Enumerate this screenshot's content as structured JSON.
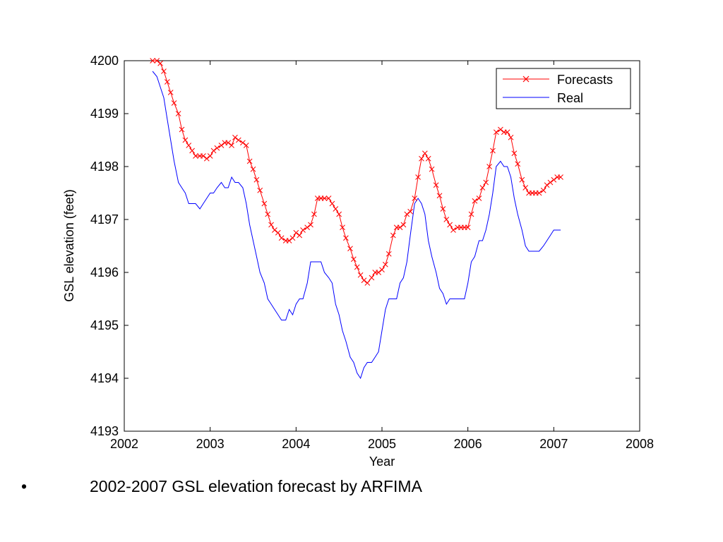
{
  "chart_data": {
    "type": "line",
    "xlabel": "Year",
    "ylabel": "GSL elevation (feet)",
    "xlim": [
      2002,
      2008
    ],
    "ylim": [
      4193,
      4200
    ],
    "xticks": [
      "2002",
      "2003",
      "2004",
      "2005",
      "2006",
      "2007",
      "2008"
    ],
    "yticks": [
      "4193",
      "4194",
      "4195",
      "4196",
      "4197",
      "4198",
      "4199",
      "4200"
    ],
    "grid": false,
    "legend_position": "top-right",
    "series": [
      {
        "name": "Forecasts",
        "color": "#ff0000",
        "marker": "x",
        "x": [
          2002.33,
          2002.38,
          2002.42,
          2002.46,
          2002.5,
          2002.54,
          2002.58,
          2002.63,
          2002.67,
          2002.71,
          2002.75,
          2002.79,
          2002.83,
          2002.88,
          2002.92,
          2002.96,
          2003.0,
          2003.04,
          2003.08,
          2003.13,
          2003.17,
          2003.21,
          2003.25,
          2003.29,
          2003.33,
          2003.38,
          2003.42,
          2003.46,
          2003.5,
          2003.54,
          2003.58,
          2003.63,
          2003.67,
          2003.71,
          2003.75,
          2003.79,
          2003.83,
          2003.88,
          2003.92,
          2003.96,
          2004.0,
          2004.04,
          2004.08,
          2004.13,
          2004.17,
          2004.21,
          2004.25,
          2004.29,
          2004.33,
          2004.38,
          2004.42,
          2004.46,
          2004.5,
          2004.54,
          2004.58,
          2004.63,
          2004.67,
          2004.71,
          2004.75,
          2004.79,
          2004.83,
          2004.88,
          2004.92,
          2004.96,
          2005.0,
          2005.04,
          2005.08,
          2005.13,
          2005.17,
          2005.21,
          2005.25,
          2005.29,
          2005.33,
          2005.38,
          2005.42,
          2005.46,
          2005.5,
          2005.54,
          2005.58,
          2005.63,
          2005.67,
          2005.71,
          2005.75,
          2005.79,
          2005.83,
          2005.88,
          2005.92,
          2005.96,
          2006.0,
          2006.04,
          2006.08,
          2006.13,
          2006.17,
          2006.21,
          2006.25,
          2006.29,
          2006.33,
          2006.38,
          2006.42,
          2006.46,
          2006.5,
          2006.54,
          2006.58,
          2006.63,
          2006.67,
          2006.71,
          2006.75,
          2006.79,
          2006.83,
          2006.88,
          2006.92,
          2006.96,
          2007.0,
          2007.04,
          2007.08
        ],
        "y": [
          4200.0,
          4200.0,
          4199.95,
          4199.8,
          4199.6,
          4199.4,
          4199.2,
          4199.0,
          4198.7,
          4198.5,
          4198.4,
          4198.3,
          4198.2,
          4198.2,
          4198.2,
          4198.15,
          4198.2,
          4198.3,
          4198.35,
          4198.4,
          4198.45,
          4198.45,
          4198.4,
          4198.55,
          4198.5,
          4198.45,
          4198.4,
          4198.1,
          4197.95,
          4197.75,
          4197.55,
          4197.3,
          4197.1,
          4196.9,
          4196.8,
          4196.75,
          4196.65,
          4196.6,
          4196.6,
          4196.65,
          4196.75,
          4196.7,
          4196.8,
          4196.85,
          4196.9,
          4197.1,
          4197.4,
          4197.4,
          4197.4,
          4197.4,
          4197.3,
          4197.2,
          4197.1,
          4196.85,
          4196.65,
          4196.45,
          4196.25,
          4196.1,
          4195.95,
          4195.85,
          4195.8,
          4195.9,
          4196.0,
          4196.0,
          4196.05,
          4196.15,
          4196.35,
          4196.7,
          4196.85,
          4196.85,
          4196.9,
          4197.1,
          4197.15,
          4197.4,
          4197.8,
          4198.15,
          4198.25,
          4198.15,
          4197.95,
          4197.65,
          4197.45,
          4197.2,
          4197.0,
          4196.9,
          4196.8,
          4196.85,
          4196.85,
          4196.85,
          4196.85,
          4197.1,
          4197.35,
          4197.4,
          4197.6,
          4197.7,
          4198.0,
          4198.3,
          4198.65,
          4198.7,
          4198.65,
          4198.65,
          4198.55,
          4198.25,
          4198.05,
          4197.75,
          4197.6,
          4197.5,
          4197.5,
          4197.5,
          4197.5,
          4197.55,
          4197.65,
          4197.7,
          4197.75,
          4197.8,
          4197.8
        ]
      },
      {
        "name": "Real",
        "color": "#0000ff",
        "x": [
          2002.33,
          2002.38,
          2002.42,
          2002.46,
          2002.5,
          2002.54,
          2002.58,
          2002.63,
          2002.67,
          2002.71,
          2002.75,
          2002.79,
          2002.83,
          2002.88,
          2002.92,
          2002.96,
          2003.0,
          2003.04,
          2003.08,
          2003.13,
          2003.17,
          2003.21,
          2003.25,
          2003.29,
          2003.33,
          2003.38,
          2003.42,
          2003.46,
          2003.5,
          2003.54,
          2003.58,
          2003.63,
          2003.67,
          2003.71,
          2003.75,
          2003.79,
          2003.83,
          2003.88,
          2003.92,
          2003.96,
          2004.0,
          2004.04,
          2004.08,
          2004.13,
          2004.17,
          2004.21,
          2004.25,
          2004.29,
          2004.33,
          2004.38,
          2004.42,
          2004.46,
          2004.5,
          2004.54,
          2004.58,
          2004.63,
          2004.67,
          2004.71,
          2004.75,
          2004.79,
          2004.83,
          2004.88,
          2004.92,
          2004.96,
          2005.0,
          2005.04,
          2005.08,
          2005.13,
          2005.17,
          2005.21,
          2005.25,
          2005.29,
          2005.33,
          2005.38,
          2005.42,
          2005.46,
          2005.5,
          2005.54,
          2005.58,
          2005.63,
          2005.67,
          2005.71,
          2005.75,
          2005.79,
          2005.83,
          2005.88,
          2005.92,
          2005.96,
          2006.0,
          2006.04,
          2006.08,
          2006.13,
          2006.17,
          2006.21,
          2006.25,
          2006.29,
          2006.33,
          2006.38,
          2006.42,
          2006.46,
          2006.5,
          2006.54,
          2006.58,
          2006.63,
          2006.67,
          2006.71,
          2006.75,
          2006.79,
          2006.83,
          2006.88,
          2006.92,
          2006.96,
          2007.0,
          2007.04,
          2007.08
        ],
        "y": [
          4199.8,
          4199.7,
          4199.5,
          4199.3,
          4198.9,
          4198.5,
          4198.1,
          4197.7,
          4197.6,
          4197.5,
          4197.3,
          4197.3,
          4197.3,
          4197.2,
          4197.3,
          4197.4,
          4197.5,
          4197.5,
          4197.6,
          4197.7,
          4197.6,
          4197.6,
          4197.8,
          4197.7,
          4197.7,
          4197.6,
          4197.3,
          4196.9,
          4196.6,
          4196.3,
          4196.0,
          4195.8,
          4195.5,
          4195.4,
          4195.3,
          4195.2,
          4195.1,
          4195.1,
          4195.3,
          4195.2,
          4195.4,
          4195.5,
          4195.5,
          4195.8,
          4196.2,
          4196.2,
          4196.2,
          4196.2,
          4196.0,
          4195.9,
          4195.8,
          4195.4,
          4195.2,
          4194.9,
          4194.7,
          4194.4,
          4194.3,
          4194.1,
          4194.0,
          4194.2,
          4194.3,
          4194.3,
          4194.4,
          4194.5,
          4194.9,
          4195.3,
          4195.5,
          4195.5,
          4195.5,
          4195.8,
          4195.9,
          4196.2,
          4196.7,
          4197.3,
          4197.4,
          4197.3,
          4197.1,
          4196.6,
          4196.3,
          4196.0,
          4195.7,
          4195.6,
          4195.4,
          4195.5,
          4195.5,
          4195.5,
          4195.5,
          4195.5,
          4195.8,
          4196.2,
          4196.3,
          4196.6,
          4196.6,
          4196.8,
          4197.1,
          4197.5,
          4198.0,
          4198.1,
          4198.0,
          4198.0,
          4197.8,
          4197.4,
          4197.1,
          4196.8,
          4196.5,
          4196.4,
          4196.4,
          4196.4,
          4196.4,
          4196.5,
          4196.6,
          4196.7,
          4196.8,
          4196.8,
          4196.8
        ]
      }
    ]
  },
  "caption": {
    "bullet": "•",
    "text": "2002-2007 GSL elevation forecast by ARFIMA"
  }
}
